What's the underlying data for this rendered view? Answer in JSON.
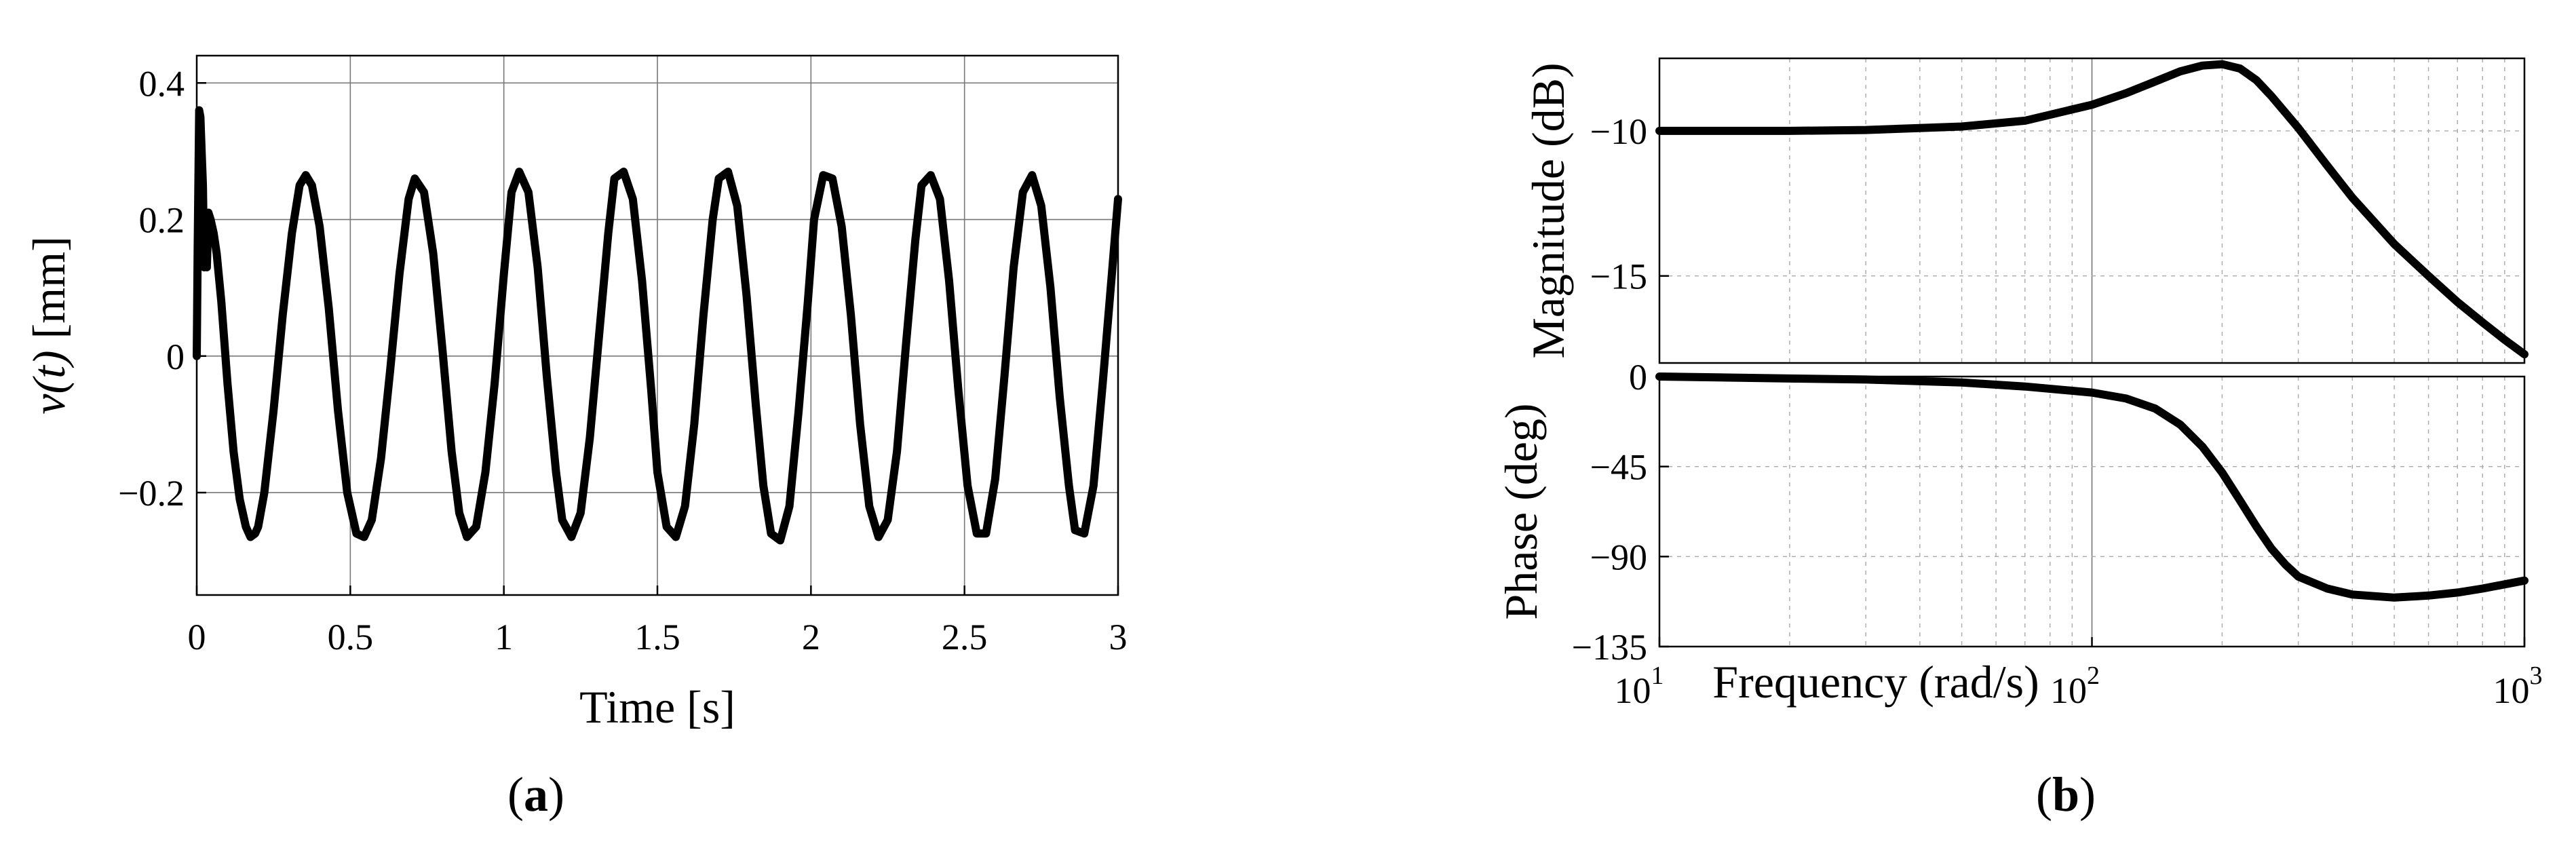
{
  "chart_data": [
    {
      "id": "a",
      "type": "line",
      "panel_caption": "(a)",
      "xlabel": "Time [s]",
      "ylabel": "v(t) [mm]",
      "xlim": [
        0,
        3
      ],
      "ylim": [
        -0.35,
        0.44
      ],
      "xticks": [
        0,
        0.5,
        1,
        1.5,
        2,
        2.5,
        3
      ],
      "xtick_labels": [
        "0",
        "0.5",
        "1",
        "1.5",
        "2",
        "2.5",
        "3"
      ],
      "yticks": [
        -0.2,
        0,
        0.2,
        0.4
      ],
      "ytick_labels": [
        "−0.2",
        "0",
        "0.2",
        "0.4"
      ],
      "grid": true,
      "series": [
        {
          "x": [
            0,
            0.003,
            0.008,
            0.012,
            0.016,
            0.02,
            0.024,
            0.028,
            0.033,
            0.038,
            0.045,
            0.055,
            0.065,
            0.08,
            0.1,
            0.12,
            0.14,
            0.16,
            0.175,
            0.19,
            0.2,
            0.22,
            0.25,
            0.28,
            0.31,
            0.335,
            0.355,
            0.375,
            0.4,
            0.43,
            0.46,
            0.49,
            0.52,
            0.545,
            0.57,
            0.6,
            0.63,
            0.66,
            0.69,
            0.71,
            0.74,
            0.77,
            0.8,
            0.83,
            0.855,
            0.88,
            0.91,
            0.94,
            0.97,
            1.0,
            1.025,
            1.05,
            1.08,
            1.11,
            1.14,
            1.17,
            1.19,
            1.22,
            1.25,
            1.28,
            1.31,
            1.34,
            1.36,
            1.39,
            1.42,
            1.45,
            1.48,
            1.5,
            1.53,
            1.56,
            1.59,
            1.62,
            1.65,
            1.68,
            1.7,
            1.73,
            1.76,
            1.79,
            1.82,
            1.845,
            1.87,
            1.9,
            1.93,
            1.96,
            1.99,
            2.01,
            2.04,
            2.07,
            2.1,
            2.13,
            2.16,
            2.19,
            2.22,
            2.25,
            2.28,
            2.31,
            2.34,
            2.36,
            2.39,
            2.42,
            2.45,
            2.48,
            2.51,
            2.54,
            2.57,
            2.6,
            2.63,
            2.66,
            2.69,
            2.72,
            2.75,
            2.78,
            2.81,
            2.84,
            2.86,
            2.89,
            2.92,
            2.95,
            2.98,
            3.0
          ],
          "y": [
            0,
            0.16,
            0.36,
            0.35,
            0.3,
            0.25,
            0.13,
            0.17,
            0.13,
            0.21,
            0.2,
            0.18,
            0.15,
            0.08,
            -0.04,
            -0.14,
            -0.21,
            -0.25,
            -0.265,
            -0.26,
            -0.25,
            -0.2,
            -0.08,
            0.06,
            0.18,
            0.25,
            0.265,
            0.25,
            0.19,
            0.07,
            -0.08,
            -0.2,
            -0.26,
            -0.265,
            -0.24,
            -0.15,
            -0.02,
            0.12,
            0.23,
            0.26,
            0.24,
            0.15,
            0.01,
            -0.14,
            -0.23,
            -0.265,
            -0.25,
            -0.17,
            -0.04,
            0.12,
            0.24,
            0.27,
            0.24,
            0.13,
            -0.03,
            -0.17,
            -0.24,
            -0.265,
            -0.23,
            -0.12,
            0.03,
            0.18,
            0.26,
            0.27,
            0.23,
            0.11,
            -0.05,
            -0.17,
            -0.25,
            -0.265,
            -0.22,
            -0.1,
            0.06,
            0.2,
            0.26,
            0.27,
            0.22,
            0.09,
            -0.07,
            -0.19,
            -0.26,
            -0.27,
            -0.22,
            -0.08,
            0.08,
            0.2,
            0.265,
            0.26,
            0.19,
            0.06,
            -0.1,
            -0.22,
            -0.265,
            -0.24,
            -0.14,
            0.02,
            0.17,
            0.25,
            0.265,
            0.23,
            0.11,
            -0.05,
            -0.19,
            -0.26,
            -0.26,
            -0.18,
            -0.03,
            0.13,
            0.24,
            0.265,
            0.22,
            0.1,
            -0.06,
            -0.19,
            -0.255,
            -0.26,
            -0.19,
            -0.04,
            0.12,
            0.23
          ]
        }
      ]
    },
    {
      "id": "b-magnitude",
      "type": "line",
      "ylabel": "Magnitude (dB)",
      "xscale": "log",
      "xlim": [
        10,
        1000
      ],
      "ylim": [
        -18,
        -7.5
      ],
      "yticks": [
        -10,
        -15
      ],
      "ytick_labels": [
        "−10",
        "−15"
      ],
      "grid": true,
      "series": [
        {
          "x": [
            10,
            20,
            30,
            50,
            70,
            100,
            120,
            140,
            160,
            180,
            200,
            220,
            240,
            260,
            300,
            350,
            400,
            500,
            600,
            700,
            800,
            900,
            1000
          ],
          "y": [
            -10,
            -10,
            -9.97,
            -9.85,
            -9.65,
            -9.1,
            -8.7,
            -8.3,
            -7.95,
            -7.75,
            -7.7,
            -7.85,
            -8.25,
            -8.8,
            -9.9,
            -11.2,
            -12.3,
            -13.9,
            -15.0,
            -15.9,
            -16.6,
            -17.2,
            -17.7
          ]
        }
      ]
    },
    {
      "id": "b-phase",
      "type": "line",
      "panel_caption": "(b)",
      "xlabel": "Frequency (rad/s)",
      "ylabel": "Phase (deg)",
      "xscale": "log",
      "xlim": [
        10,
        1000
      ],
      "xticks": [
        10,
        100,
        1000
      ],
      "xtick_labels": [
        {
          "base": "10",
          "exp": "1"
        },
        {
          "base": "10",
          "exp": "2"
        },
        {
          "base": "10",
          "exp": "3"
        }
      ],
      "ylim": [
        -135,
        0
      ],
      "yticks": [
        0,
        -45,
        -90,
        -135
      ],
      "ytick_labels": [
        "0",
        "−45",
        "−90",
        "−135"
      ],
      "grid": true,
      "series": [
        {
          "x": [
            10,
            20,
            30,
            50,
            70,
            100,
            120,
            140,
            160,
            180,
            200,
            220,
            240,
            260,
            280,
            300,
            350,
            400,
            500,
            600,
            700,
            800,
            1000
          ],
          "y": [
            0,
            -1,
            -1.5,
            -3,
            -5,
            -8,
            -11,
            -16,
            -24,
            -35,
            -48,
            -62,
            -75,
            -86,
            -94,
            -100,
            -106,
            -109,
            -110.5,
            -109.5,
            -108,
            -106,
            -102
          ]
        }
      ]
    }
  ],
  "captions": {
    "a": {
      "open": "(",
      "letter": "a",
      "close": ")"
    },
    "b": {
      "open": "(",
      "letter": "b",
      "close": ")"
    }
  }
}
